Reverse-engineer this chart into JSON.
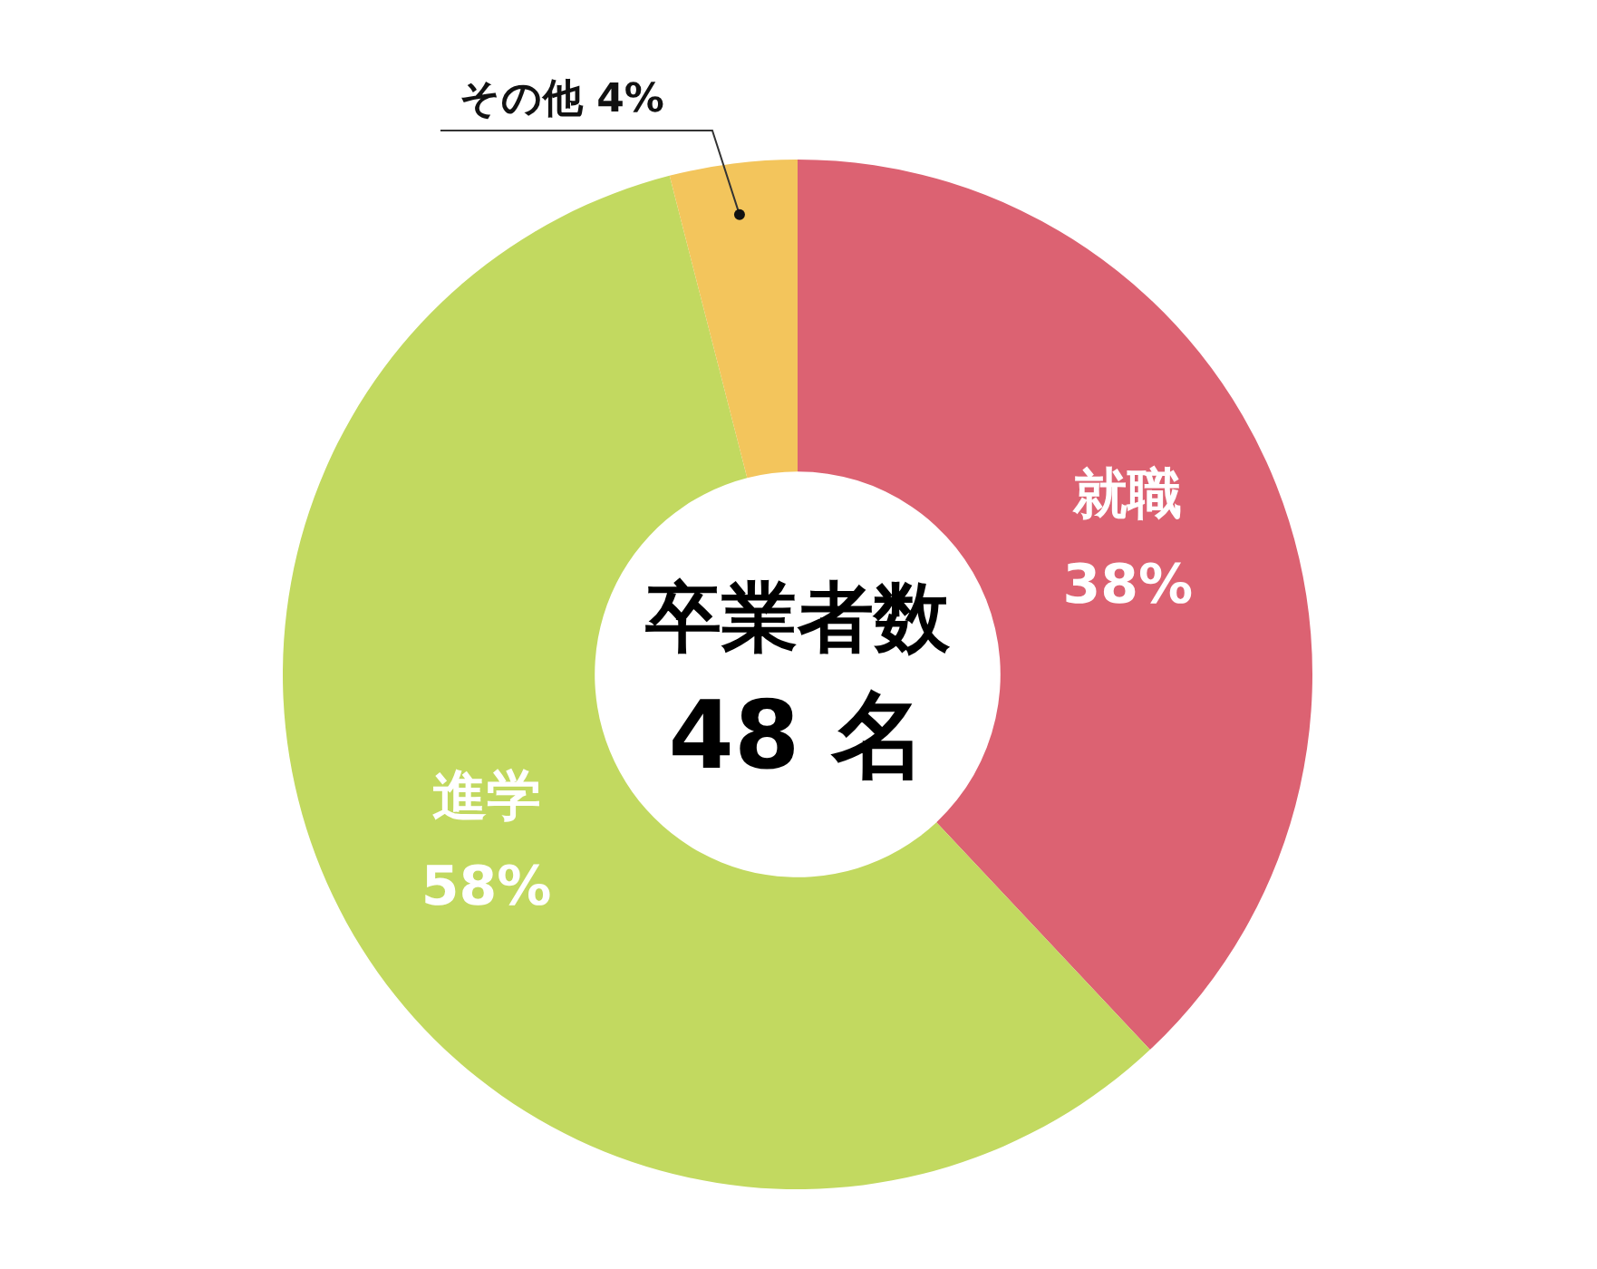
{
  "chart_data": {
    "type": "donut",
    "title": "卒業者数",
    "subtitle": "48 名",
    "categories": [
      "就職",
      "進学",
      "その他"
    ],
    "values": [
      38,
      58,
      4
    ],
    "colors": [
      "#dc6272",
      "#c2d960",
      "#f3c55c"
    ],
    "value_labels": [
      "38%",
      "58%",
      "4%"
    ],
    "legend": false
  }
}
